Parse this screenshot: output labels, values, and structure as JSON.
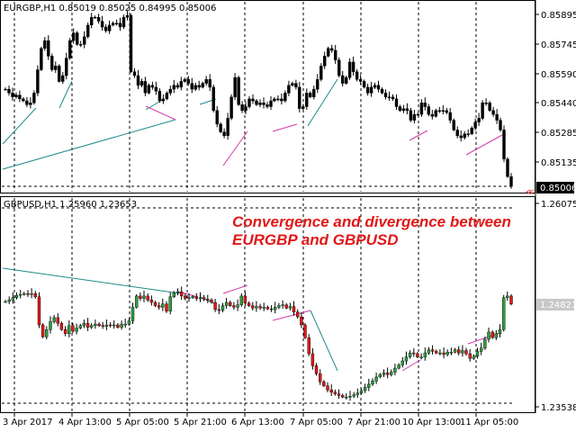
{
  "colors": {
    "bull": "#2e9e3e",
    "bear": "#e01818",
    "wick": "#000000",
    "trend_teal": "#1f8a8a",
    "trend_magenta": "#d23ca6",
    "grid": "#000000",
    "annotation": "#e01818"
  },
  "top_panel": {
    "title": "EURGBP,H1  0.85019 0.85025 0.84995 0.85006",
    "price_labels": [
      "0.85895",
      "0.85745",
      "0.85590",
      "0.85440",
      "0.85285",
      "0.85135"
    ],
    "current_price": "0.85006",
    "marker": "≪"
  },
  "bottom_panel": {
    "title": "GBPUSD,H1  1.25960 1.23653",
    "price_labels": [
      "1.26075",
      "1.23538"
    ],
    "current_price": "1.24821",
    "annotation_line1": "Convergence and divergence between",
    "annotation_line2": "EURGBP and GBPUSD"
  },
  "time_axis": [
    "3 Apr 2017",
    "4 Apr 13:00",
    "5 Apr 05:00",
    "5 Apr 21:00",
    "6 Apr 13:00",
    "7 Apr 05:00",
    "7 Apr 21:00",
    "10 Apr 13:00",
    "11 Apr 05:00"
  ],
  "chart_data": [
    {
      "symbol": "EURGBP",
      "timeframe": "H1",
      "type": "candlestick",
      "ohlc_header": {
        "open": 0.85019,
        "high": 0.85025,
        "low": 0.84995,
        "close": 0.85006
      },
      "y_ticks": [
        0.85895,
        0.85745,
        0.8559,
        0.8544,
        0.85285,
        0.85135
      ],
      "last_price": 0.85006,
      "close_series": [
        0.8551,
        0.8549,
        0.8547,
        0.8548,
        0.8546,
        0.8545,
        0.8543,
        0.8544,
        0.8549,
        0.8561,
        0.8572,
        0.8576,
        0.8568,
        0.8561,
        0.8563,
        0.8555,
        0.8558,
        0.8567,
        0.8576,
        0.858,
        0.8574,
        0.8574,
        0.8578,
        0.8584,
        0.8588,
        0.8588,
        0.8586,
        0.8583,
        0.8581,
        0.8584,
        0.8585,
        0.8585,
        0.8583,
        0.8588,
        0.8589,
        0.856,
        0.8558,
        0.8553,
        0.8555,
        0.8549,
        0.8553,
        0.8552,
        0.855,
        0.8545,
        0.8546,
        0.8549,
        0.8551,
        0.8553,
        0.8552,
        0.8555,
        0.8556,
        0.8554,
        0.8551,
        0.8553,
        0.8552,
        0.8554,
        0.8556,
        0.8552,
        0.854,
        0.8533,
        0.8529,
        0.8527,
        0.8536,
        0.8547,
        0.8557,
        0.8543,
        0.854,
        0.8542,
        0.8546,
        0.8545,
        0.8543,
        0.8544,
        0.8543,
        0.8542,
        0.8545,
        0.8546,
        0.8546,
        0.8545,
        0.8549,
        0.8553,
        0.8554,
        0.8552,
        0.8541,
        0.8542,
        0.8549,
        0.8547,
        0.8551,
        0.8556,
        0.8563,
        0.8568,
        0.8572,
        0.8571,
        0.8566,
        0.8558,
        0.8554,
        0.8557,
        0.8565,
        0.856,
        0.8556,
        0.8555,
        0.8552,
        0.8549,
        0.8552,
        0.8553,
        0.8551,
        0.8549,
        0.8547,
        0.8547,
        0.8546,
        0.8542,
        0.854,
        0.8541,
        0.854,
        0.8535,
        0.8538,
        0.8538,
        0.8544,
        0.8542,
        0.8538,
        0.8537,
        0.854,
        0.854,
        0.854,
        0.8539,
        0.8535,
        0.853,
        0.8527,
        0.8526,
        0.8528,
        0.8528,
        0.8531,
        0.8534,
        0.8536,
        0.8544,
        0.8544,
        0.854,
        0.8538,
        0.8535,
        0.853,
        0.8515,
        0.8506,
        0.8501
      ]
    },
    {
      "symbol": "GBPUSD",
      "timeframe": "H1",
      "type": "candlestick",
      "ohlc_header": {
        "high": 1.2596,
        "low": 1.23653
      },
      "y_ticks": [
        1.26075,
        1.23538
      ],
      "last_price": 1.24821,
      "close_series": [
        1.2485,
        1.2487,
        1.249,
        1.2493,
        1.2494,
        1.2495,
        1.2494,
        1.2495,
        1.2491,
        1.2456,
        1.2441,
        1.245,
        1.246,
        1.2465,
        1.2458,
        1.245,
        1.2445,
        1.2455,
        1.2448,
        1.2452,
        1.2455,
        1.2458,
        1.2453,
        1.2455,
        1.2457,
        1.2455,
        1.2454,
        1.2456,
        1.2455,
        1.2456,
        1.2453,
        1.2457,
        1.2457,
        1.2461,
        1.2478,
        1.2492,
        1.2489,
        1.2492,
        1.2487,
        1.2484,
        1.248,
        1.2478,
        1.2482,
        1.2473,
        1.2491,
        1.2496,
        1.2497,
        1.2492,
        1.2489,
        1.249,
        1.2491,
        1.2489,
        1.249,
        1.2488,
        1.2487,
        1.2484,
        1.2475,
        1.2474,
        1.248,
        1.2484,
        1.248,
        1.2478,
        1.2481,
        1.2492,
        1.2483,
        1.248,
        1.2477,
        1.2479,
        1.2477,
        1.2478,
        1.2476,
        1.2475,
        1.2478,
        1.248,
        1.2481,
        1.2477,
        1.2479,
        1.2472,
        1.2466,
        1.2456,
        1.244,
        1.242,
        1.2405,
        1.2395,
        1.2385,
        1.238,
        1.2375,
        1.2372,
        1.237,
        1.2368,
        1.2366,
        1.2366,
        1.2367,
        1.2369,
        1.2371,
        1.2374,
        1.2378,
        1.2382,
        1.2386,
        1.2391,
        1.2394,
        1.2396,
        1.2394,
        1.2397,
        1.2402,
        1.2406,
        1.2411,
        1.2416,
        1.2421,
        1.242,
        1.2416,
        1.2416,
        1.2421,
        1.2425,
        1.2423,
        1.2421,
        1.2421,
        1.2419,
        1.2422,
        1.2422,
        1.2425,
        1.2421,
        1.2424,
        1.242,
        1.2414,
        1.2417,
        1.2423,
        1.2427,
        1.2438,
        1.2447,
        1.244,
        1.2445,
        1.245,
        1.249,
        1.2492,
        1.2482
      ]
    }
  ]
}
